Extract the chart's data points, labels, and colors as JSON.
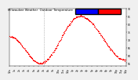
{
  "title": "Milwaukee Weather  Outdoor Temperature",
  "background_color": "#f0f0f0",
  "plot_bg_color": "#ffffff",
  "legend_blue_color": "#0000ff",
  "legend_red_color": "#ff0000",
  "dot_color": "#ff0000",
  "dot_size": 0.8,
  "vline_x": 420,
  "vline_color": "#888888",
  "vline_style": "dotted",
  "ylim": [
    53,
    90
  ],
  "xlim": [
    0,
    1440
  ],
  "ytick_vals": [
    55,
    60,
    65,
    70,
    75,
    80,
    85,
    90
  ],
  "ytick_labels": [
    "55",
    "60",
    "65",
    "70",
    "75",
    "80",
    "85",
    "90"
  ],
  "title_fontsize": 2.8,
  "tick_fontsize": 2.2,
  "n_points": 1440,
  "temp_start": 72,
  "temp_min": 55,
  "temp_min_minute": 380,
  "temp_max": 85,
  "temp_max_minute": 870,
  "temp_end": 57
}
